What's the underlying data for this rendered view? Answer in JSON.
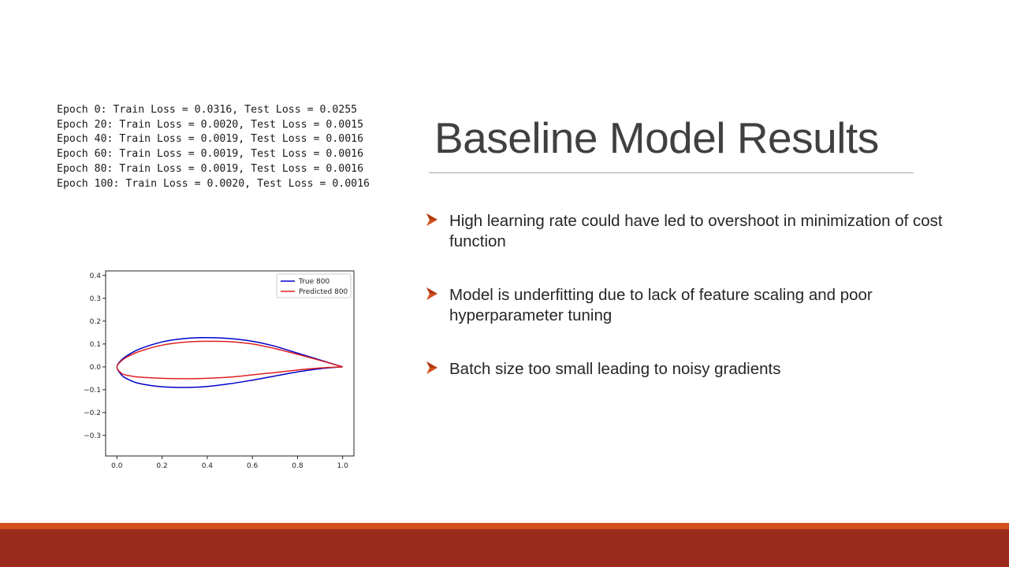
{
  "training_log": [
    "Epoch 0: Train Loss = 0.0316, Test Loss = 0.0255",
    "Epoch 20: Train Loss = 0.0020, Test Loss = 0.0015",
    "Epoch 40: Train Loss = 0.0019, Test Loss = 0.0016",
    "Epoch 60: Train Loss = 0.0019, Test Loss = 0.0016",
    "Epoch 80: Train Loss = 0.0019, Test Loss = 0.0016",
    "Epoch 100: Train Loss = 0.0020, Test Loss = 0.0016"
  ],
  "slide": {
    "title": "Baseline Model Results",
    "bullets": [
      "High learning rate could have led to overshoot in minimization of cost function",
      "Model is underfitting due to lack of feature scaling and poor hyperparameter tuning",
      "Batch size too small leading to noisy gradients"
    ],
    "bullet_icon": "arrow-bullet-icon"
  },
  "colors": {
    "bullet_arrow": "#d2501e",
    "band_top": "#d2501e",
    "band_bottom": "#9a2b1c",
    "true_line": "#0000cc",
    "pred_line": "#e02020"
  },
  "chart_data": {
    "type": "line",
    "title": "",
    "xlabel": "",
    "ylabel": "",
    "xlim": [
      -0.05,
      1.05
    ],
    "ylim": [
      -0.39,
      0.42
    ],
    "x_ticks": [
      "0.0",
      "0.2",
      "0.4",
      "0.6",
      "0.8",
      "1.0"
    ],
    "x_tick_values": [
      0.0,
      0.2,
      0.4,
      0.6,
      0.8,
      1.0
    ],
    "y_ticks": [
      "0.4",
      "0.3",
      "0.2",
      "0.1",
      "0.0",
      "−0.1",
      "−0.2",
      "−0.3"
    ],
    "y_tick_values": [
      0.4,
      0.3,
      0.2,
      0.1,
      0.0,
      -0.1,
      -0.2,
      -0.3
    ],
    "legend_position": "top-right",
    "series": [
      {
        "name": "True 800",
        "color": "#0000cc",
        "x": [
          1.0,
          0.9,
          0.8,
          0.7,
          0.6,
          0.5,
          0.4,
          0.3,
          0.2,
          0.1,
          0.05,
          0.02,
          0.0,
          0.02,
          0.05,
          0.1,
          0.2,
          0.3,
          0.4,
          0.5,
          0.6,
          0.7,
          0.8,
          0.9,
          1.0
        ],
        "y": [
          0.0,
          0.03,
          0.06,
          0.09,
          0.112,
          0.124,
          0.128,
          0.124,
          0.109,
          0.078,
          0.052,
          0.03,
          0.0,
          -0.035,
          -0.055,
          -0.073,
          -0.087,
          -0.09,
          -0.086,
          -0.074,
          -0.058,
          -0.04,
          -0.022,
          -0.008,
          0.0
        ]
      },
      {
        "name": "Predicted 800",
        "color": "#e02020",
        "x": [
          1.0,
          0.9,
          0.8,
          0.7,
          0.6,
          0.5,
          0.4,
          0.3,
          0.2,
          0.1,
          0.05,
          0.02,
          0.0,
          0.02,
          0.05,
          0.1,
          0.2,
          0.3,
          0.4,
          0.5,
          0.6,
          0.7,
          0.8,
          0.9,
          1.0
        ],
        "y": [
          0.0,
          0.028,
          0.055,
          0.08,
          0.1,
          0.11,
          0.112,
          0.108,
          0.095,
          0.068,
          0.046,
          0.026,
          0.0,
          -0.028,
          -0.038,
          -0.045,
          -0.05,
          -0.052,
          -0.05,
          -0.045,
          -0.035,
          -0.025,
          -0.014,
          -0.005,
          0.0
        ]
      }
    ]
  }
}
